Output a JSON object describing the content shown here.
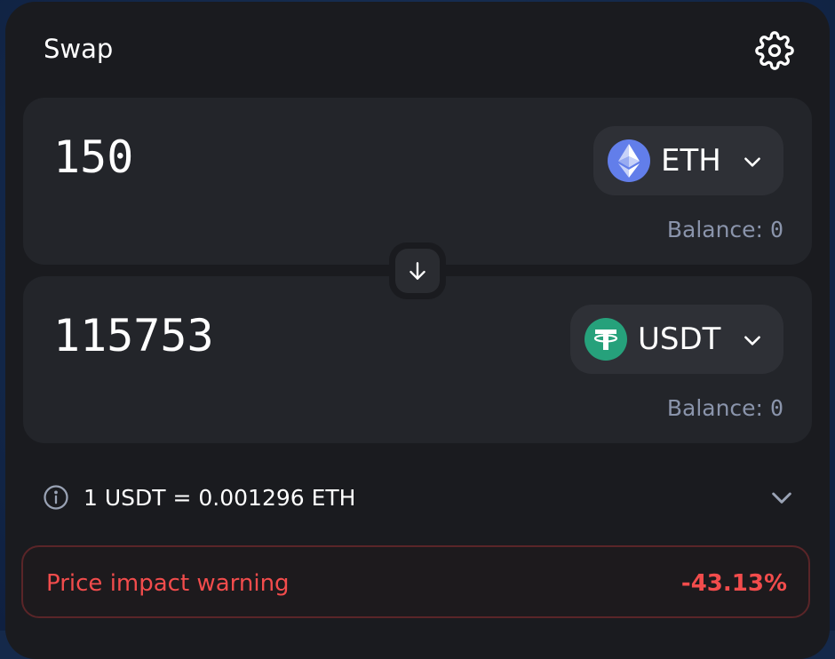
{
  "header": {
    "title": "Swap",
    "settings_icon": "gear-icon"
  },
  "from": {
    "amount": "150",
    "token_symbol": "ETH",
    "token_icon": "ethereum-icon",
    "balance_label": "Balance:",
    "balance_value": "0"
  },
  "to": {
    "amount": "115753",
    "token_symbol": "USDT",
    "token_icon": "tether-icon",
    "balance_label": "Balance:",
    "balance_value": "0"
  },
  "swap_direction_icon": "arrow-down-icon",
  "rate": {
    "info_icon": "info-icon",
    "text": "1 USDT = 0.001296 ETH"
  },
  "warning": {
    "label": "Price impact warning",
    "value": "-43.13%"
  },
  "colors": {
    "card_bg": "#1a1b1f",
    "panel_bg": "#23252a",
    "eth_brand": "#627eea",
    "usdt_brand": "#26a17b",
    "warning_red": "#f24c4c",
    "muted_text": "#8a94ab"
  }
}
